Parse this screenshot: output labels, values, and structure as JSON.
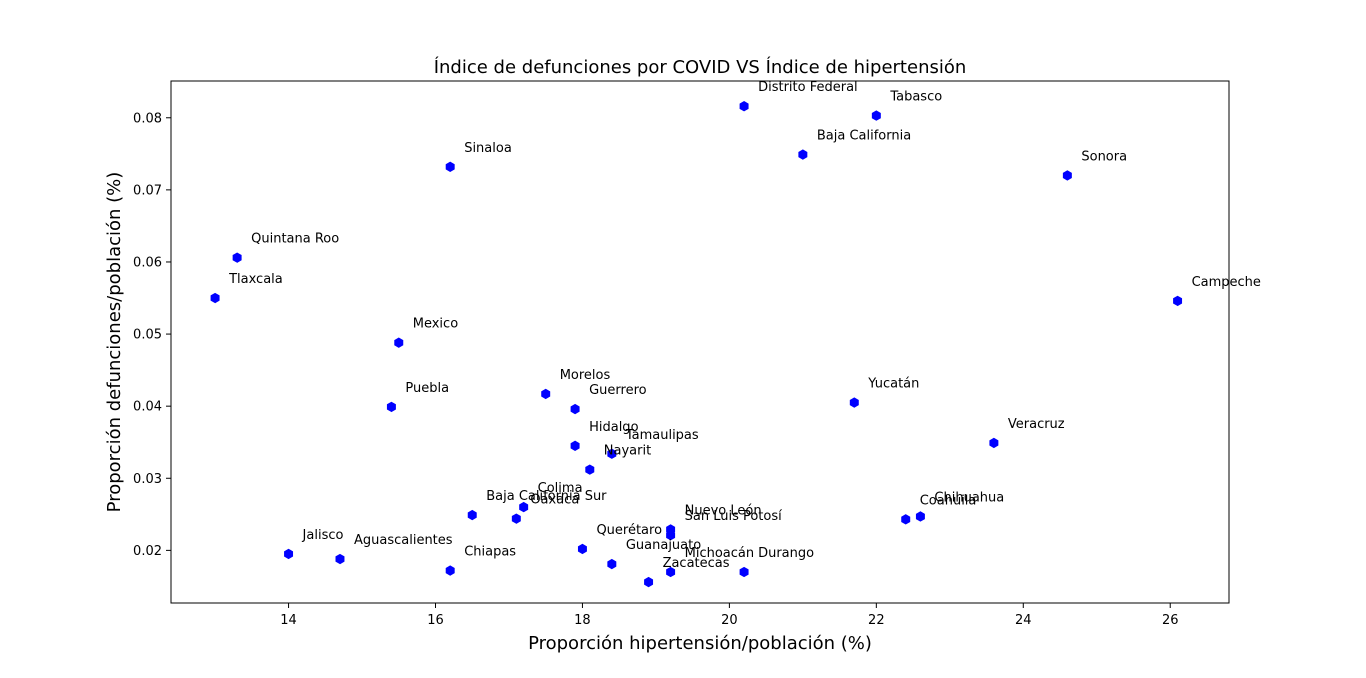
{
  "chart_data": {
    "type": "scatter",
    "title": "Índice de defunciones por COVID VS Índice de hipertensión",
    "xlabel": "Proporción hipertensión/población (%)",
    "ylabel": "Proporción defunciones/población (%)",
    "xlim": [
      12.4,
      26.8
    ],
    "ylim": [
      0.0127,
      0.0851
    ],
    "xticks": [
      14,
      16,
      18,
      20,
      22,
      24,
      26
    ],
    "xtick_labels": [
      "14",
      "16",
      "18",
      "20",
      "22",
      "24",
      "26"
    ],
    "yticks": [
      0.02,
      0.03,
      0.04,
      0.05,
      0.06,
      0.07,
      0.08
    ],
    "ytick_labels": [
      "0.02",
      "0.03",
      "0.04",
      "0.05",
      "0.06",
      "0.07",
      "0.08"
    ],
    "grid": false,
    "marker_color": "#0000ff",
    "points": [
      {
        "label": "Distrito Federal",
        "x": 20.2,
        "y": 0.0816
      },
      {
        "label": "Tabasco",
        "x": 22.0,
        "y": 0.0803
      },
      {
        "label": "Baja California",
        "x": 21.0,
        "y": 0.0749
      },
      {
        "label": "Sinaloa",
        "x": 16.2,
        "y": 0.0732
      },
      {
        "label": "Sonora",
        "x": 24.6,
        "y": 0.072
      },
      {
        "label": "Quintana Roo",
        "x": 13.3,
        "y": 0.0606
      },
      {
        "label": "Tlaxcala",
        "x": 13.0,
        "y": 0.055
      },
      {
        "label": "Campeche",
        "x": 26.1,
        "y": 0.0546
      },
      {
        "label": "Mexico",
        "x": 15.5,
        "y": 0.0488
      },
      {
        "label": "Morelos",
        "x": 17.5,
        "y": 0.0417
      },
      {
        "label": "Yucatán",
        "x": 21.7,
        "y": 0.0405
      },
      {
        "label": "Puebla",
        "x": 15.4,
        "y": 0.0399
      },
      {
        "label": "Guerrero",
        "x": 17.9,
        "y": 0.0396
      },
      {
        "label": "Veracruz",
        "x": 23.6,
        "y": 0.0349
      },
      {
        "label": "Hidalgo",
        "x": 17.9,
        "y": 0.0345
      },
      {
        "label": "Tamaulipas",
        "x": 18.4,
        "y": 0.0334
      },
      {
        "label": "Nayarit",
        "x": 18.1,
        "y": 0.0312
      },
      {
        "label": "Colima",
        "x": 17.2,
        "y": 0.026
      },
      {
        "label": "Baja California Sur",
        "x": 16.5,
        "y": 0.0249
      },
      {
        "label": "Chihuahua",
        "x": 22.6,
        "y": 0.0247
      },
      {
        "label": "Oaxaca",
        "x": 17.1,
        "y": 0.0244
      },
      {
        "label": "Coahuila",
        "x": 22.4,
        "y": 0.0243
      },
      {
        "label": "Nuevo León",
        "x": 19.2,
        "y": 0.0229
      },
      {
        "label": "San Luis Potosí",
        "x": 19.2,
        "y": 0.0221
      },
      {
        "label": "Querétaro",
        "x": 18.0,
        "y": 0.0202
      },
      {
        "label": "Jalisco",
        "x": 14.0,
        "y": 0.0195
      },
      {
        "label": "Aguascalientes",
        "x": 14.7,
        "y": 0.0188
      },
      {
        "label": "Guanajuato",
        "x": 18.4,
        "y": 0.0181
      },
      {
        "label": "Chiapas",
        "x": 16.2,
        "y": 0.0172
      },
      {
        "label": "Michoacán",
        "x": 19.2,
        "y": 0.017
      },
      {
        "label": "Durango",
        "x": 20.2,
        "y": 0.017
      },
      {
        "label": "Zacatecas",
        "x": 18.9,
        "y": 0.0156
      }
    ]
  }
}
